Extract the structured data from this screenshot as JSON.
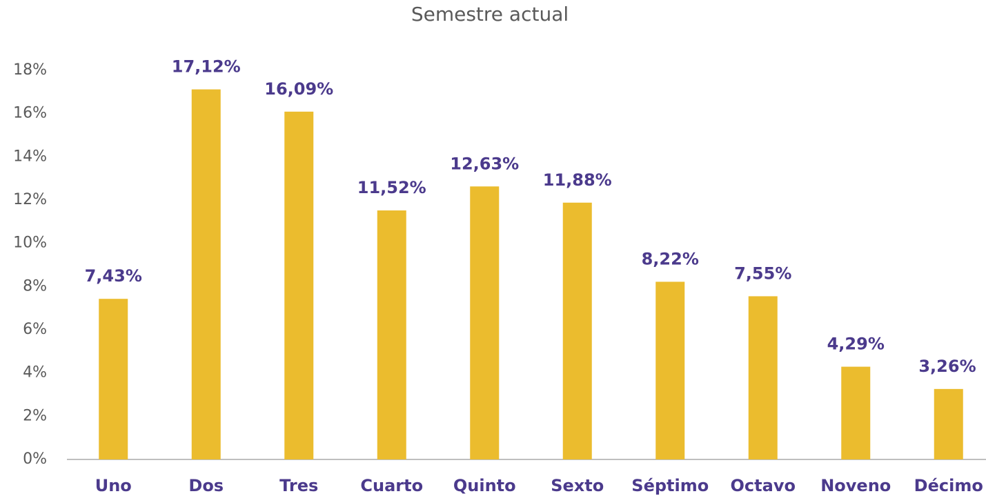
{
  "chart_data": {
    "type": "bar",
    "title": "Semestre actual",
    "categories": [
      "Uno",
      "Dos",
      "Tres",
      "Cuarto",
      "Quinto",
      "Sexto",
      "Séptimo",
      "Octavo",
      "Noveno",
      "Décimo"
    ],
    "values": [
      7.43,
      17.12,
      16.09,
      11.52,
      12.63,
      11.88,
      8.22,
      7.55,
      4.29,
      3.26
    ],
    "value_labels": [
      "7,43%",
      "17,12%",
      "16,09%",
      "11,52%",
      "12,63%",
      "11,88%",
      "8,22%",
      "7,55%",
      "4,29%",
      "3,26%"
    ],
    "color": "#ebbc2e",
    "ylim": [
      0,
      18
    ],
    "yticks": [
      {
        "value": 0,
        "label": "0%"
      },
      {
        "value": 2,
        "label": "2%"
      },
      {
        "value": 4,
        "label": "4%"
      },
      {
        "value": 6,
        "label": "6%"
      },
      {
        "value": 8,
        "label": "8%"
      },
      {
        "value": 10,
        "label": "10%"
      },
      {
        "value": 12,
        "label": "12%"
      },
      {
        "value": 14,
        "label": "14%"
      },
      {
        "value": 16,
        "label": "16%"
      },
      {
        "value": 18,
        "label": "18%"
      }
    ],
    "grid": false
  }
}
